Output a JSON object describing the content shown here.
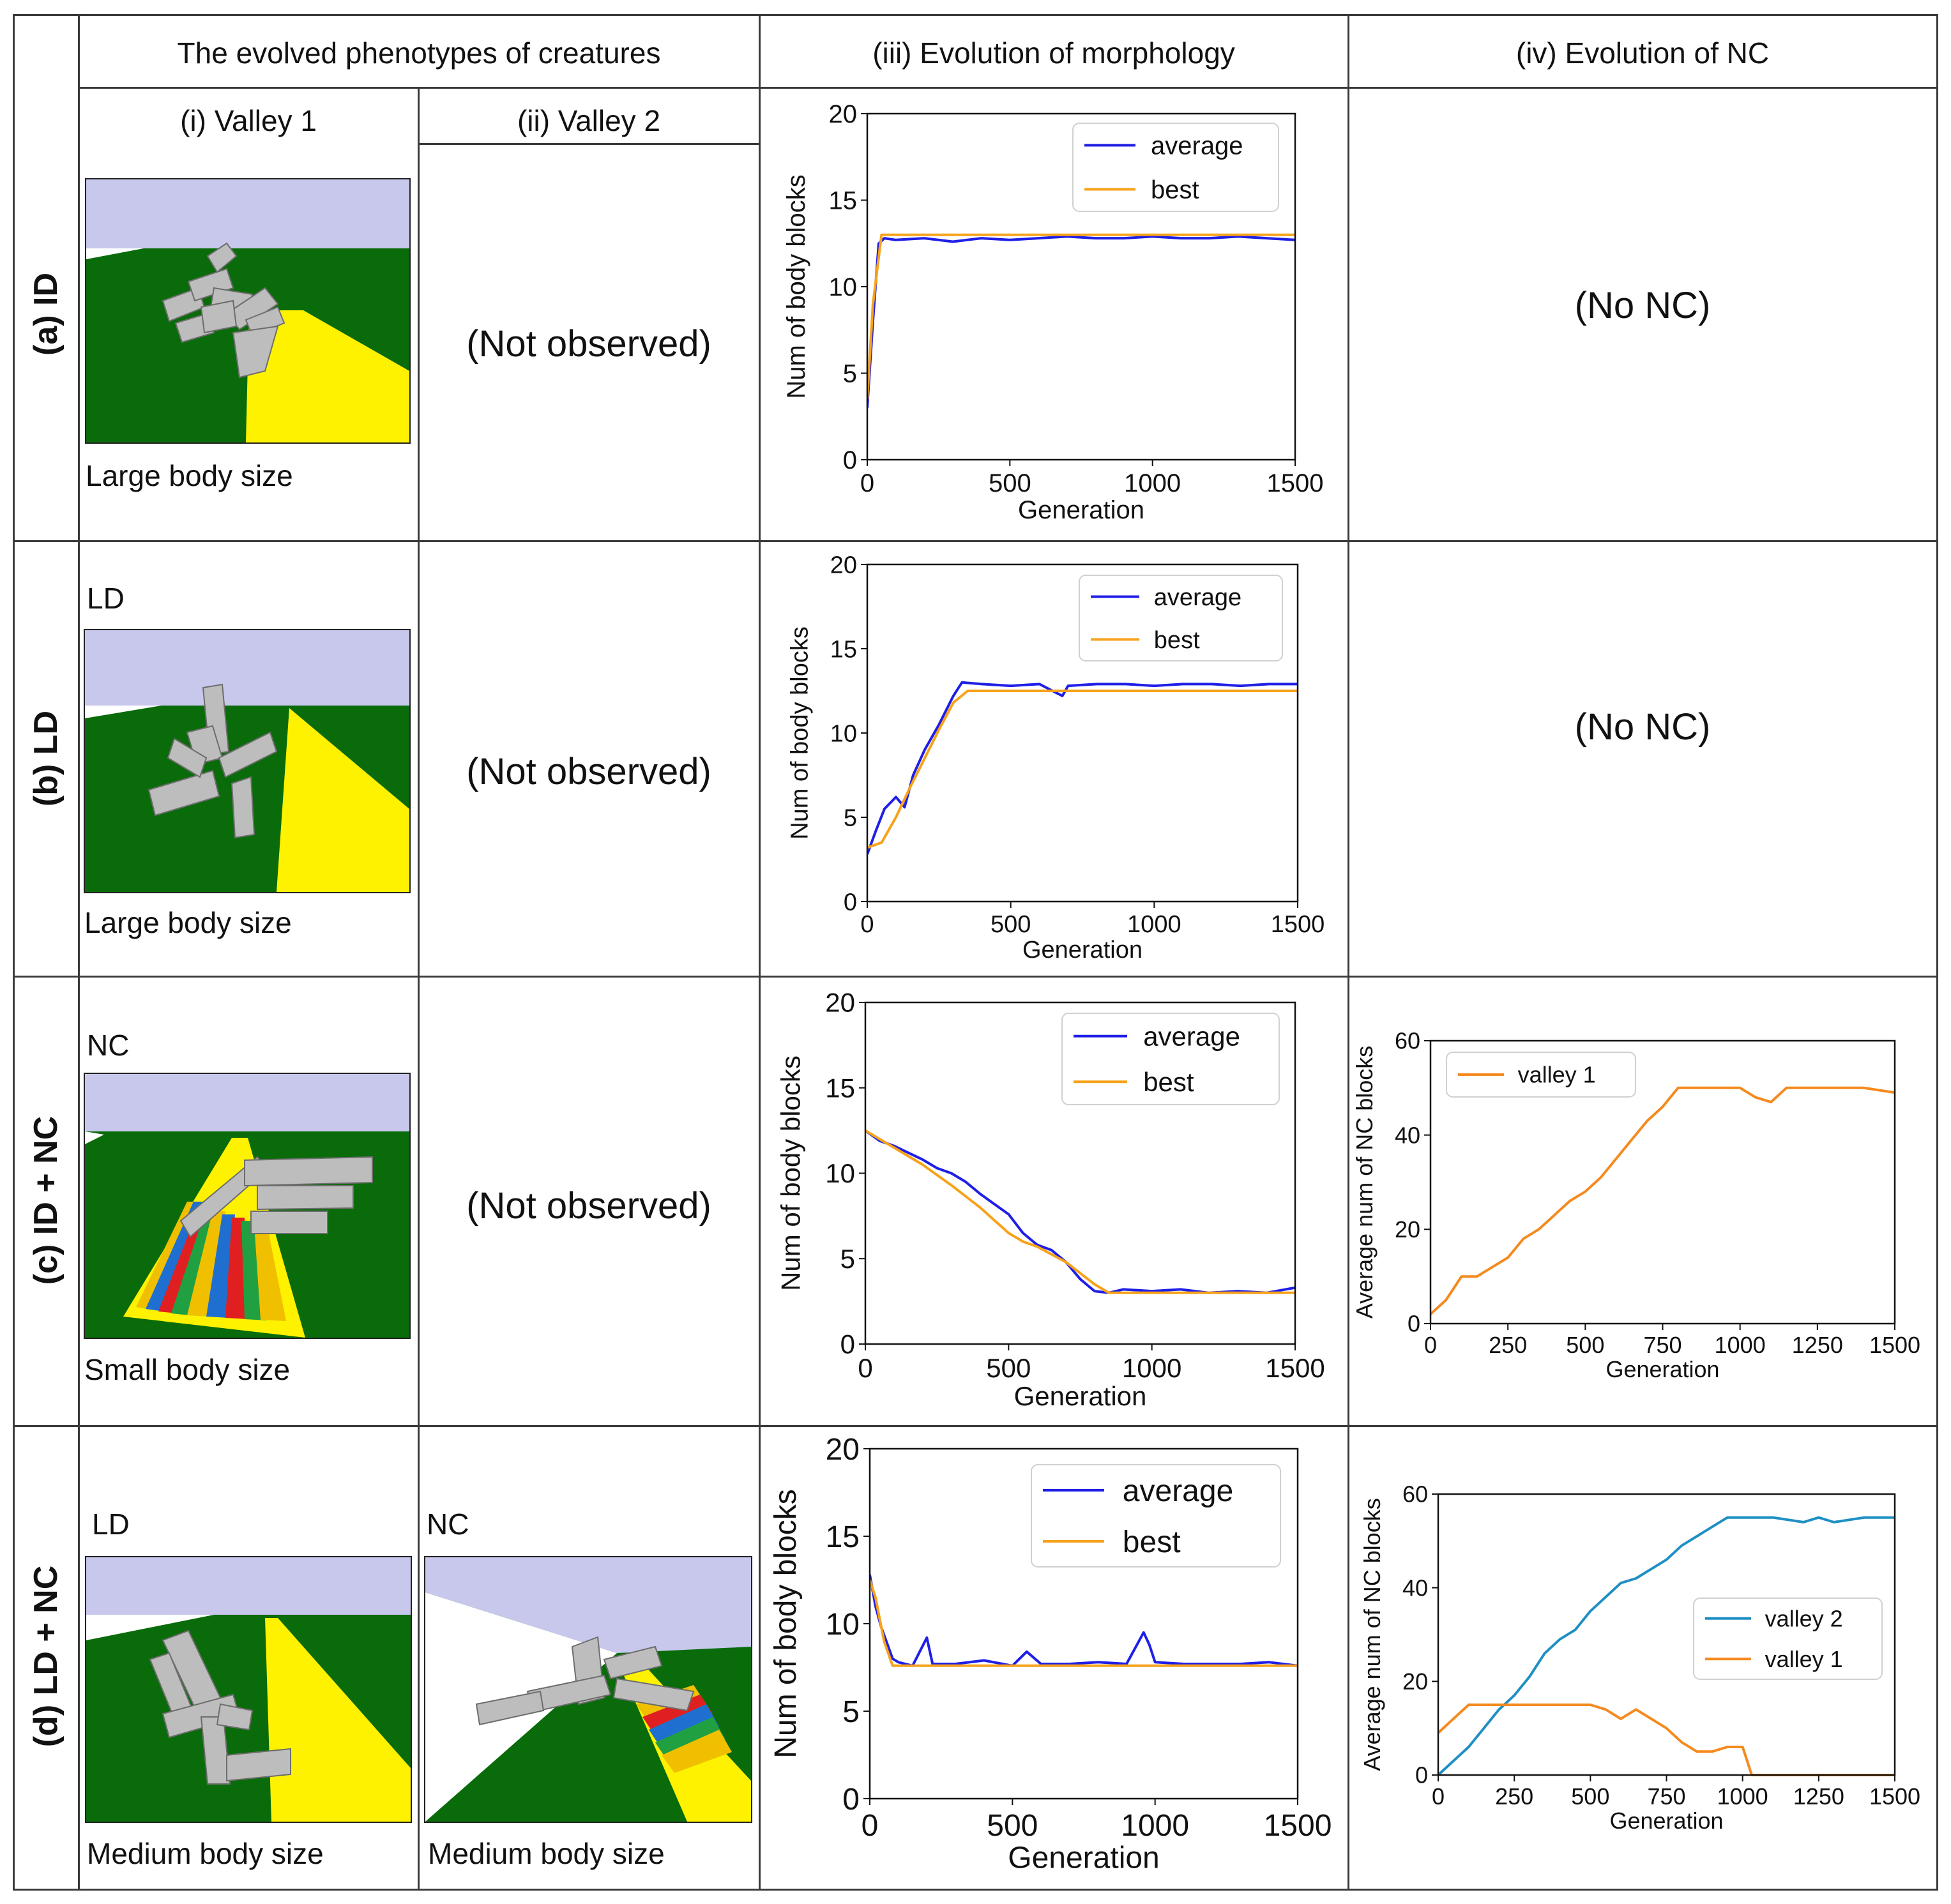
{
  "headers": {
    "phenotypes": "The evolved phenotypes of creatures",
    "valley1": "(i) Valley 1",
    "valley2": "(ii) Valley 2",
    "morphology": "(iii) Evolution of morphology",
    "nc": "(iv) Evolution of NC"
  },
  "rows": [
    {
      "label": "(a) ID",
      "v1_tag": "",
      "v1_caption": "Large body size",
      "v2_text": "(Not observed)",
      "nc_text": "(No NC)"
    },
    {
      "label": "(b) LD",
      "v1_tag": "LD",
      "v1_caption": "Large body size",
      "v2_text": "(Not observed)",
      "nc_text": "(No NC)"
    },
    {
      "label": "(c) ID + NC",
      "v1_tag": "NC",
      "v1_caption": "Small body size",
      "v2_text": "(Not observed)",
      "nc_text": ""
    },
    {
      "label": "(d) LD + NC",
      "v1_tag": "LD",
      "v1_caption": "Medium body size",
      "v2_tag": "NC",
      "v2_caption": "Medium body size"
    }
  ],
  "colors": {
    "average": "#1f1fe6",
    "best": "#f7a21b",
    "valley2": "#1f8fc4",
    "valley1": "#f58a1f",
    "sky": "#c7c8ec",
    "grass": "#0a6b0a",
    "path": "#fff200",
    "block": "#bdbdbd"
  },
  "chart_data": [
    {
      "id": "a-morph",
      "type": "line",
      "xlabel": "Generation",
      "ylabel": "Num of body blocks",
      "xlim": [
        0,
        1500
      ],
      "ylim": [
        0,
        20
      ],
      "xticks": [
        0,
        500,
        1000,
        1500
      ],
      "yticks": [
        0,
        5,
        10,
        15,
        20
      ],
      "legend": "top-right",
      "series": [
        {
          "name": "average",
          "color": "#1f1fe6",
          "x": [
            0,
            20,
            40,
            60,
            100,
            200,
            300,
            400,
            500,
            600,
            700,
            800,
            900,
            1000,
            1100,
            1200,
            1300,
            1400,
            1500
          ],
          "y": [
            3,
            8,
            12.5,
            12.8,
            12.7,
            12.8,
            12.6,
            12.8,
            12.7,
            12.8,
            12.9,
            12.8,
            12.8,
            12.9,
            12.8,
            12.8,
            12.9,
            12.8,
            12.7
          ]
        },
        {
          "name": "best",
          "color": "#f7a21b",
          "x": [
            0,
            20,
            50,
            100,
            1500
          ],
          "y": [
            3.5,
            9,
            13,
            13,
            13
          ]
        }
      ]
    },
    {
      "id": "b-morph",
      "type": "line",
      "xlabel": "Generation",
      "ylabel": "Num of body blocks",
      "xlim": [
        0,
        1500
      ],
      "ylim": [
        0,
        20
      ],
      "xticks": [
        0,
        500,
        1000,
        1500
      ],
      "yticks": [
        0,
        5,
        10,
        15,
        20
      ],
      "legend": "top-right",
      "series": [
        {
          "name": "average",
          "color": "#1f1fe6",
          "x": [
            0,
            30,
            60,
            100,
            130,
            160,
            200,
            250,
            300,
            330,
            400,
            500,
            600,
            680,
            700,
            800,
            900,
            1000,
            1100,
            1200,
            1300,
            1400,
            1500
          ],
          "y": [
            2.8,
            4.2,
            5.5,
            6.2,
            5.6,
            7.5,
            9.0,
            10.5,
            12.2,
            13,
            12.9,
            12.8,
            12.9,
            12.2,
            12.8,
            12.9,
            12.9,
            12.8,
            12.9,
            12.9,
            12.8,
            12.9,
            12.9
          ]
        },
        {
          "name": "best",
          "color": "#f7a21b",
          "x": [
            0,
            50,
            100,
            150,
            200,
            250,
            300,
            350,
            1500
          ],
          "y": [
            3.2,
            3.5,
            5.0,
            6.8,
            8.5,
            10.2,
            11.8,
            12.5,
            12.5
          ]
        }
      ]
    },
    {
      "id": "c-morph",
      "type": "line",
      "xlabel": "Generation",
      "ylabel": "Num of body blocks",
      "xlim": [
        0,
        1500
      ],
      "ylim": [
        0,
        20
      ],
      "xticks": [
        0,
        500,
        1000,
        1500
      ],
      "yticks": [
        0,
        5,
        10,
        15,
        20
      ],
      "legend": "top-right",
      "series": [
        {
          "name": "average",
          "color": "#1f1fe6",
          "x": [
            0,
            50,
            100,
            150,
            200,
            250,
            300,
            350,
            400,
            450,
            500,
            550,
            600,
            650,
            700,
            750,
            800,
            850,
            900,
            1000,
            1100,
            1200,
            1300,
            1400,
            1500
          ],
          "y": [
            12.5,
            11.9,
            11.6,
            11.2,
            10.8,
            10.3,
            10.0,
            9.5,
            8.8,
            8.2,
            7.6,
            6.5,
            5.8,
            5.5,
            4.8,
            3.8,
            3.1,
            3.0,
            3.2,
            3.1,
            3.2,
            3.0,
            3.1,
            3.0,
            3.3
          ]
        },
        {
          "name": "best",
          "color": "#f7a21b",
          "x": [
            0,
            100,
            200,
            300,
            400,
            500,
            550,
            600,
            700,
            800,
            850,
            1500
          ],
          "y": [
            12.5,
            11.5,
            10.5,
            9.3,
            8.0,
            6.5,
            6.0,
            5.7,
            4.8,
            3.5,
            3.0,
            3.0
          ]
        }
      ]
    },
    {
      "id": "d-morph",
      "type": "line",
      "xlabel": "Generation",
      "ylabel": "Num of body blocks",
      "xlim": [
        0,
        1500
      ],
      "ylim": [
        0,
        20
      ],
      "xticks": [
        0,
        500,
        1000,
        1500
      ],
      "yticks": [
        0,
        5,
        10,
        15,
        20
      ],
      "legend": "top-right",
      "series": [
        {
          "name": "average",
          "color": "#1f1fe6",
          "x": [
            0,
            20,
            40,
            60,
            80,
            100,
            150,
            200,
            220,
            300,
            400,
            500,
            550,
            600,
            700,
            800,
            900,
            960,
            980,
            1000,
            1100,
            1200,
            1300,
            1400,
            1500
          ],
          "y": [
            12.8,
            11.0,
            9.8,
            8.9,
            8.0,
            7.8,
            7.6,
            9.2,
            7.7,
            7.7,
            7.9,
            7.6,
            8.4,
            7.7,
            7.7,
            7.8,
            7.7,
            9.5,
            8.8,
            7.8,
            7.7,
            7.7,
            7.7,
            7.8,
            7.6
          ]
        },
        {
          "name": "best",
          "color": "#f7a21b",
          "x": [
            0,
            20,
            50,
            80,
            1500
          ],
          "y": [
            12.5,
            11.5,
            9.0,
            7.6,
            7.6
          ]
        }
      ]
    },
    {
      "id": "c-nc",
      "type": "line",
      "xlabel": "Generation",
      "ylabel": "Average num of NC blocks",
      "xlim": [
        0,
        1500
      ],
      "ylim": [
        0,
        60
      ],
      "xticks": [
        0,
        250,
        500,
        750,
        1000,
        1250,
        1500
      ],
      "yticks": [
        0,
        20,
        40,
        60
      ],
      "legend": "top-left",
      "series": [
        {
          "name": "valley 1",
          "color": "#f58a1f",
          "x": [
            0,
            50,
            100,
            150,
            200,
            250,
            300,
            350,
            400,
            450,
            500,
            550,
            600,
            650,
            700,
            750,
            800,
            900,
            1000,
            1050,
            1100,
            1150,
            1200,
            1300,
            1400,
            1500
          ],
          "y": [
            2,
            5,
            10,
            10,
            12,
            14,
            18,
            20,
            23,
            26,
            28,
            31,
            35,
            39,
            43,
            46,
            50,
            50,
            50,
            48,
            47,
            50,
            50,
            50,
            50,
            49
          ]
        }
      ]
    },
    {
      "id": "d-nc",
      "type": "line",
      "xlabel": "Generation",
      "ylabel": "Average num of NC blocks",
      "xlim": [
        0,
        1500
      ],
      "ylim": [
        0,
        60
      ],
      "xticks": [
        0,
        250,
        500,
        750,
        1000,
        1250,
        1500
      ],
      "yticks": [
        0,
        20,
        40,
        60
      ],
      "legend": "center-right",
      "series": [
        {
          "name": "valley 2",
          "color": "#1f8fc4",
          "x": [
            0,
            50,
            100,
            150,
            200,
            250,
            300,
            350,
            400,
            450,
            500,
            550,
            600,
            650,
            700,
            750,
            800,
            850,
            900,
            950,
            1000,
            1100,
            1200,
            1250,
            1300,
            1400,
            1500
          ],
          "y": [
            0,
            3,
            6,
            10,
            14,
            17,
            21,
            26,
            29,
            31,
            35,
            38,
            41,
            42,
            44,
            46,
            49,
            51,
            53,
            55,
            55,
            55,
            54,
            55,
            54,
            55,
            55
          ]
        },
        {
          "name": "valley 1",
          "color": "#f58a1f",
          "x": [
            0,
            50,
            100,
            200,
            300,
            400,
            500,
            550,
            600,
            650,
            700,
            750,
            800,
            850,
            900,
            950,
            1000,
            1020,
            1030,
            1100,
            1200,
            1300,
            1400,
            1500
          ],
          "y": [
            9,
            12,
            15,
            15,
            15,
            15,
            15,
            14,
            12,
            14,
            12,
            10,
            7,
            5,
            5,
            6,
            6,
            2,
            0,
            0,
            0,
            0,
            0,
            0
          ]
        }
      ]
    }
  ]
}
